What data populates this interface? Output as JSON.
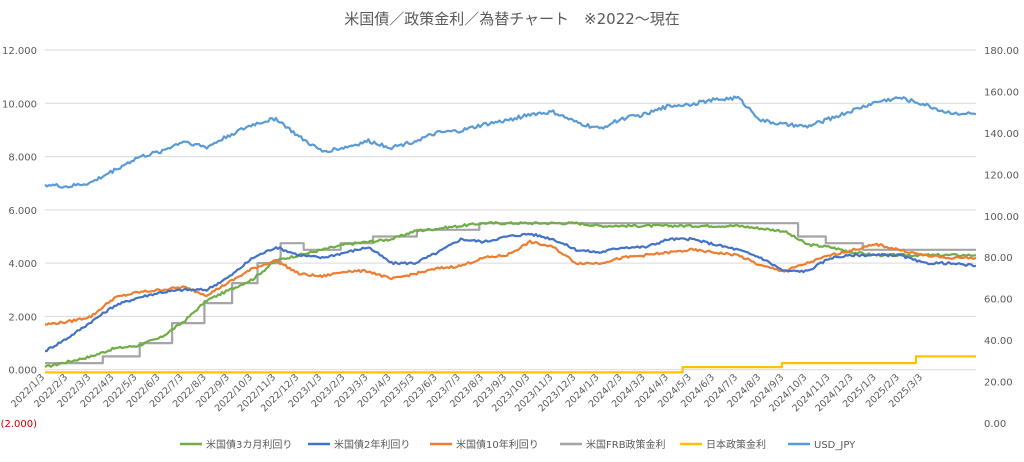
{
  "chart_data": {
    "type": "line",
    "title": "米国債／政策金利／為替チャート　※2022～現在",
    "y_left": {
      "ticks": [
        "12.000",
        "10.000",
        "8.000",
        "6.000",
        "4.000",
        "2.000",
        "0.000",
        "(2.000)"
      ],
      "values": [
        12,
        10,
        8,
        6,
        4,
        2,
        0,
        -2
      ],
      "ylim": [
        -2,
        12
      ]
    },
    "y_right": {
      "ticks": [
        "180.00",
        "160.00",
        "140.00",
        "120.00",
        "100.00",
        "80.00",
        "60.00",
        "40.00",
        "20.00",
        "0.00"
      ],
      "values": [
        180,
        160,
        140,
        120,
        100,
        80,
        60,
        40,
        20,
        0
      ],
      "ylim": [
        0,
        180
      ]
    },
    "x_labels": [
      "2022/1/3",
      "2022/2/3",
      "2022/3/3",
      "2022/4/3",
      "2022/5/3",
      "2022/6/3",
      "2022/7/3",
      "2022/8/3",
      "2022/9/3",
      "2022/10/3",
      "2022/11/3",
      "2022/12/3",
      "2023/1/3",
      "2023/2/3",
      "2023/3/3",
      "2023/4/3",
      "2023/5/3",
      "2023/6/3",
      "2023/7/3",
      "2023/8/3",
      "2023/9/3",
      "2023/10/3",
      "2023/11/3",
      "2023/12/3",
      "2024/1/3",
      "2024/2/3",
      "2024/3/3",
      "2024/4/3",
      "2024/5/3",
      "2024/6/3",
      "2024/7/3",
      "2024/8/3",
      "2024/9/3",
      "2024/10/3",
      "2024/11/3",
      "2024/12/3",
      "2025/1/3",
      "2025/2/3",
      "2025/3/3"
    ],
    "x_months": [
      0,
      1,
      2,
      3,
      4,
      5,
      6,
      7,
      8,
      9,
      10,
      11,
      12,
      13,
      14,
      15,
      16,
      17,
      18,
      19,
      20,
      21,
      22,
      23,
      24,
      25,
      26,
      27,
      28,
      29,
      30,
      31,
      32,
      33,
      34,
      35,
      36,
      37,
      38
    ],
    "x_range": [
      0,
      40.3
    ],
    "grid": "horizontal",
    "legend_position": "bottom",
    "series": [
      {
        "name": "米国債3カ月利回り",
        "color": "#70ad47",
        "axis": "left",
        "step": false,
        "x": [
          0,
          1,
          2,
          3,
          4,
          5,
          6,
          7,
          8,
          9,
          10,
          11,
          12,
          13,
          14,
          15,
          16,
          17,
          18,
          19,
          20,
          21,
          22,
          23,
          24,
          25,
          26,
          27,
          28,
          29,
          30,
          31,
          32,
          33,
          34,
          35,
          36,
          37,
          38,
          39,
          40.3
        ],
        "y": [
          0.1,
          0.3,
          0.5,
          0.8,
          0.9,
          1.2,
          1.8,
          2.6,
          3.0,
          3.4,
          4.1,
          4.3,
          4.5,
          4.7,
          4.8,
          4.9,
          5.2,
          5.3,
          5.4,
          5.5,
          5.5,
          5.5,
          5.5,
          5.5,
          5.4,
          5.4,
          5.4,
          5.4,
          5.4,
          5.4,
          5.4,
          5.3,
          5.2,
          4.7,
          4.6,
          4.4,
          4.3,
          4.3,
          4.3,
          4.3,
          4.3
        ]
      },
      {
        "name": "米国債2年利回り",
        "color": "#4472c4",
        "axis": "left",
        "step": false,
        "x": [
          0,
          1,
          2,
          3,
          4,
          5,
          6,
          7,
          8,
          9,
          10,
          11,
          12,
          13,
          14,
          15,
          16,
          17,
          18,
          19,
          20,
          21,
          22,
          23,
          24,
          25,
          26,
          27,
          28,
          29,
          30,
          31,
          32,
          33,
          34,
          35,
          36,
          37,
          38,
          39,
          40.3
        ],
        "y": [
          0.7,
          1.2,
          1.8,
          2.4,
          2.7,
          2.9,
          3.0,
          3.0,
          3.5,
          4.2,
          4.6,
          4.3,
          4.2,
          4.4,
          4.6,
          4.0,
          4.0,
          4.4,
          4.9,
          4.8,
          5.0,
          5.1,
          4.9,
          4.5,
          4.4,
          4.6,
          4.6,
          4.9,
          4.9,
          4.7,
          4.5,
          4.2,
          3.7,
          3.7,
          4.2,
          4.3,
          4.3,
          4.3,
          4.0,
          4.0,
          3.9
        ]
      },
      {
        "name": "米国債10年利回り",
        "color": "#ed7d31",
        "axis": "left",
        "step": false,
        "x": [
          0,
          1,
          2,
          3,
          4,
          5,
          6,
          7,
          8,
          9,
          10,
          11,
          12,
          13,
          14,
          15,
          16,
          17,
          18,
          19,
          20,
          21,
          22,
          23,
          24,
          25,
          26,
          27,
          28,
          29,
          30,
          31,
          32,
          33,
          34,
          35,
          36,
          37,
          38,
          39,
          40.3
        ],
        "y": [
          1.7,
          1.8,
          2.0,
          2.7,
          2.9,
          3.0,
          3.1,
          2.8,
          3.3,
          3.8,
          4.1,
          3.6,
          3.5,
          3.7,
          3.7,
          3.4,
          3.6,
          3.8,
          3.9,
          4.2,
          4.3,
          4.8,
          4.6,
          4.0,
          4.0,
          4.2,
          4.3,
          4.4,
          4.5,
          4.4,
          4.3,
          3.9,
          3.7,
          4.0,
          4.3,
          4.5,
          4.7,
          4.5,
          4.3,
          4.2,
          4.2
        ]
      },
      {
        "name": "米国FRB政策金利",
        "color": "#a5a5a5",
        "axis": "left",
        "step": true,
        "x": [
          0,
          2.5,
          4.1,
          5.5,
          6.9,
          8.1,
          9.2,
          10.2,
          11.2,
          12.8,
          14.2,
          16.1,
          17.6,
          18.8,
          32.6,
          33.8,
          35.4,
          40.3
        ],
        "y": [
          0.25,
          0.5,
          1.0,
          1.75,
          2.5,
          3.25,
          4.0,
          4.75,
          4.5,
          4.75,
          5.0,
          5.25,
          5.25,
          5.5,
          5.0,
          4.75,
          4.5,
          4.5
        ]
      },
      {
        "name": "日本政策金利",
        "color": "#ffc000",
        "axis": "left",
        "step": true,
        "x": [
          0,
          27.6,
          31.9,
          37.7,
          40.3
        ],
        "y": [
          -0.1,
          0.1,
          0.25,
          0.5,
          0.5
        ]
      },
      {
        "name": "USD_JPY",
        "color": "#5b9bd5",
        "axis": "right",
        "step": false,
        "x": [
          0,
          1,
          2,
          3,
          4,
          5,
          6,
          7,
          8,
          9,
          10,
          11,
          12,
          13,
          14,
          15,
          16,
          17,
          18,
          19,
          20,
          21,
          22,
          23,
          24,
          25,
          26,
          27,
          28,
          29,
          30,
          31,
          32,
          33,
          34,
          35,
          36,
          37,
          38,
          39,
          40.3
        ],
        "y": [
          115,
          114,
          116,
          122,
          128,
          131,
          136,
          133,
          139,
          144,
          147,
          138,
          131,
          133,
          136,
          133,
          136,
          140,
          141,
          144,
          146,
          149,
          150,
          145,
          142,
          147,
          149,
          153,
          154,
          156,
          157,
          146,
          144,
          143,
          147,
          151,
          155,
          157,
          154,
          150,
          149
        ]
      }
    ]
  }
}
